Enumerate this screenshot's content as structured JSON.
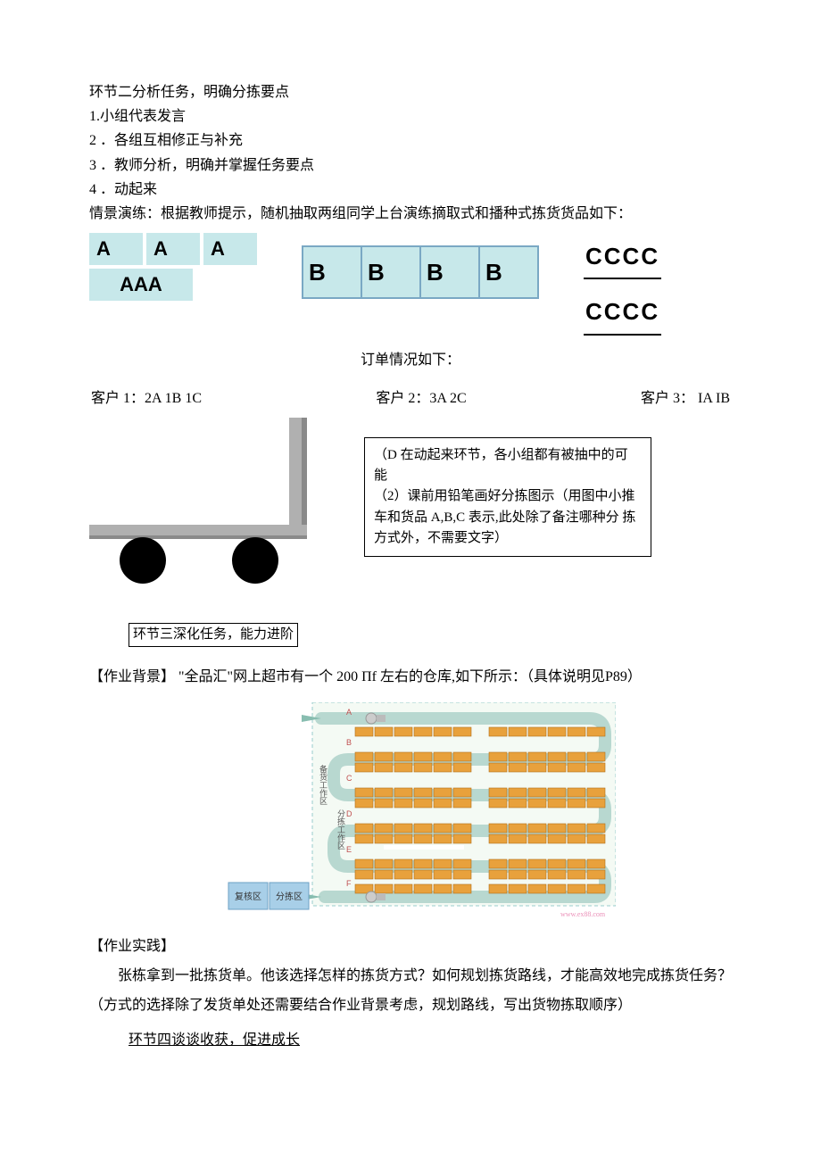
{
  "header": {
    "title": "环节二分析任务，明确分拣要点",
    "items": [
      "1.小组代表发言",
      "2 ．各组互相修正与补充",
      "3 ．教师分析，明确并掌握任务要点",
      "4 ．动起来"
    ],
    "scenario": "情景演练：根据教师提示，随机抽取两组同学上台演练摘取式和播种式拣货货品如下："
  },
  "goods": {
    "a_top": [
      "A",
      "A",
      "A"
    ],
    "a_bottom": "AAA",
    "b": [
      "B",
      "B",
      "B",
      "B"
    ],
    "c": [
      "CCCC",
      "CCCC"
    ]
  },
  "orders": {
    "title": "订单情况如下：",
    "c1": "客户 1：2A 1B 1C",
    "c2": "客户 2：3A 2C",
    "c3": "客户 3：  IA IB"
  },
  "note": {
    "l1": "（D 在动起来环节，各小组都有被抽中的可  能",
    "l2": "（2）课前用铅笔画好分拣图示（用图中小推车和货品 A,B,C 表示,此处除了备注哪种分  拣方式外，不需要文字）"
  },
  "section3": "环节三深化任务，能力进阶",
  "background": {
    "label": "【作业背景】",
    "text": "  \"全品汇\"网上超市有一个 200 Πf 左右的仓库,如下所示：（具体说明见P89）"
  },
  "warehouse": {
    "left_label_1": "备货工作区",
    "left_label_2": "分拣工作区",
    "zone1": "复核区",
    "zone2": "分拣区",
    "row_labels": [
      "A",
      "B",
      "C",
      "D",
      "E",
      "F"
    ],
    "watermark": "www.ex88.com",
    "shelf_color": "#e8a13c",
    "shelf_border": "#b06f1a",
    "path_color": "#b8d8d0",
    "zone_fill": "#a8cfe8",
    "bg": "#f4faf4"
  },
  "practice": {
    "label": "【作业实践】",
    "p1": "张栋拿到一批拣货单。他该选择怎样的拣货方式？如何规划拣货路线，才能高效地完成拣货任务？",
    "p2": "（方式的选择除了发货单处还需要结合作业背景考虑，规划路线，写出货物拣取顺序）"
  },
  "section4": "环节四谈谈收获，促进成长",
  "cart": {
    "body_fill": "#b0b0b0",
    "body_shadow": "#8a8a8a",
    "wheel_fill": "#000000"
  }
}
